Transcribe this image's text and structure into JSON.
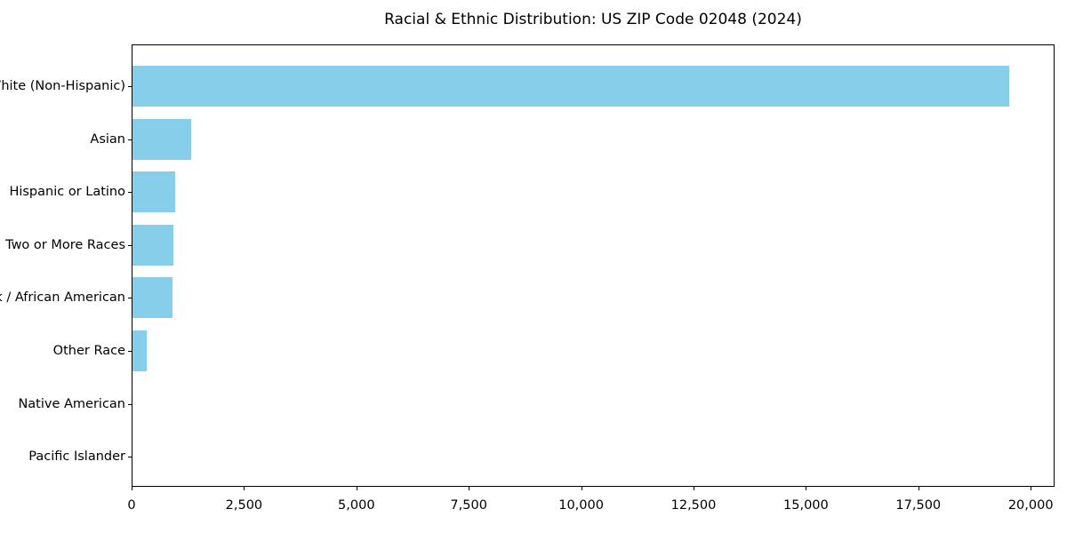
{
  "chart_data": {
    "type": "bar",
    "orientation": "horizontal",
    "title": "Racial & Ethnic Distribution: US ZIP Code 02048 (2024)",
    "categories": [
      "White (Non-Hispanic)",
      "Asian",
      "Hispanic or Latino",
      "Two or More Races",
      "Black / African American",
      "Other Race",
      "Native American",
      "Pacific Islander"
    ],
    "values": [
      19500,
      1300,
      950,
      900,
      890,
      310,
      0,
      0
    ],
    "bar_color": "#87CEEB",
    "xlabel": "",
    "ylabel": "",
    "xlim": [
      0,
      20530
    ],
    "xticks": [
      0,
      2500,
      5000,
      7500,
      10000,
      12500,
      15000,
      17500,
      20000
    ],
    "xticklabels": [
      "0",
      "2,500",
      "5,000",
      "7,500",
      "10,000",
      "12,500",
      "15,000",
      "17,500",
      "20,000"
    ],
    "grid": false,
    "legend": "none",
    "background_color": "#ffffff",
    "text_color": "#000000"
  }
}
